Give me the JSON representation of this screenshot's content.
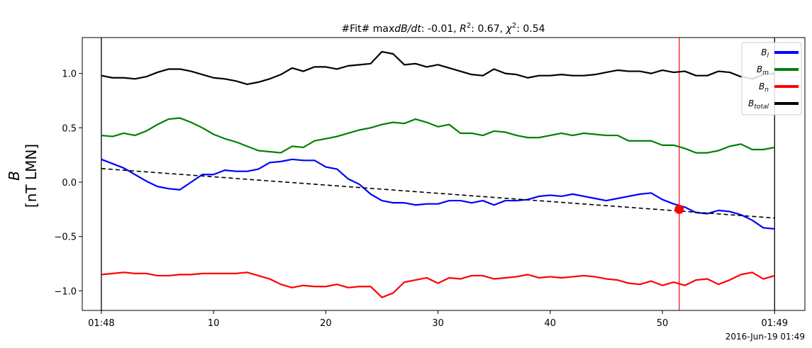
{
  "chart_data": {
    "type": "line",
    "title": "#Fit# maxdB/dt: -0.01, R²: 0.67, χ²: 0.54",
    "title_parts": {
      "prefix": "#Fit# max",
      "dbdt": "dB/dt",
      "after_dbdt": ": -0.01, ",
      "r_symbol": "R",
      "r_sup": "2",
      "after_r": ": 0.67, ",
      "chi_symbol": "χ",
      "chi_sup": "2",
      "after_chi": ": 0.54"
    },
    "ylabel_main": "B",
    "ylabel_unit": "[nT LMN]",
    "timestamp": "2016-Jun-19 01:49",
    "xlim": [
      -1.7,
      62.7
    ],
    "ylim": [
      -1.18,
      1.33
    ],
    "x_ticks": [
      {
        "x": 0,
        "label": "01:48"
      },
      {
        "x": 10,
        "label": "10"
      },
      {
        "x": 20,
        "label": "20"
      },
      {
        "x": 30,
        "label": "30"
      },
      {
        "x": 40,
        "label": "40"
      },
      {
        "x": 50,
        "label": "50"
      },
      {
        "x": 60,
        "label": "01:49"
      }
    ],
    "y_ticks": [
      {
        "y": 1.0,
        "label": "1.0"
      },
      {
        "y": 0.5,
        "label": "0.5"
      },
      {
        "y": 0.0,
        "label": "0.0"
      },
      {
        "y": -0.5,
        "label": "−0.5"
      },
      {
        "y": -1.0,
        "label": "−1.0"
      }
    ],
    "boundary_lines_x": [
      0,
      60
    ],
    "marker_line_x": 51.5,
    "fit_line": {
      "x": [
        0,
        60
      ],
      "y": [
        0.125,
        -0.33
      ]
    },
    "fit_point": {
      "x": 51.5,
      "y": -0.25
    },
    "legend_position": "top-right",
    "series": [
      {
        "name": "B_l",
        "label_main": "B",
        "label_sub": "l",
        "color": "#0000ff",
        "values": [
          0.21,
          0.17,
          0.13,
          0.07,
          0.01,
          -0.04,
          -0.06,
          -0.07,
          0.0,
          0.07,
          0.07,
          0.11,
          0.1,
          0.1,
          0.12,
          0.18,
          0.19,
          0.21,
          0.2,
          0.2,
          0.14,
          0.12,
          0.03,
          -0.02,
          -0.11,
          -0.17,
          -0.19,
          -0.19,
          -0.21,
          -0.2,
          -0.2,
          -0.17,
          -0.17,
          -0.19,
          -0.17,
          -0.21,
          -0.17,
          -0.17,
          -0.16,
          -0.13,
          -0.12,
          -0.13,
          -0.11,
          -0.13,
          -0.15,
          -0.17,
          -0.15,
          -0.13,
          -0.11,
          -0.1,
          -0.16,
          -0.2,
          -0.23,
          -0.28,
          -0.29,
          -0.26,
          -0.27,
          -0.3,
          -0.35,
          -0.42,
          -0.43
        ]
      },
      {
        "name": "B_m",
        "label_main": "B",
        "label_sub": "m",
        "color": "#008000",
        "values": [
          0.43,
          0.42,
          0.45,
          0.43,
          0.47,
          0.53,
          0.58,
          0.59,
          0.55,
          0.5,
          0.44,
          0.4,
          0.37,
          0.33,
          0.29,
          0.28,
          0.27,
          0.33,
          0.32,
          0.38,
          0.4,
          0.42,
          0.45,
          0.48,
          0.5,
          0.53,
          0.55,
          0.54,
          0.58,
          0.55,
          0.51,
          0.53,
          0.45,
          0.45,
          0.43,
          0.47,
          0.46,
          0.43,
          0.41,
          0.41,
          0.43,
          0.45,
          0.43,
          0.45,
          0.44,
          0.43,
          0.43,
          0.38,
          0.38,
          0.38,
          0.34,
          0.34,
          0.31,
          0.27,
          0.27,
          0.29,
          0.33,
          0.35,
          0.3,
          0.3,
          0.32
        ]
      },
      {
        "name": "B_n",
        "label_main": "B",
        "label_sub": "n",
        "color": "#ff0000",
        "values": [
          -0.85,
          -0.84,
          -0.83,
          -0.84,
          -0.84,
          -0.86,
          -0.86,
          -0.85,
          -0.85,
          -0.84,
          -0.84,
          -0.84,
          -0.84,
          -0.83,
          -0.86,
          -0.89,
          -0.94,
          -0.97,
          -0.95,
          -0.96,
          -0.96,
          -0.94,
          -0.97,
          -0.96,
          -0.96,
          -1.06,
          -1.02,
          -0.92,
          -0.9,
          -0.88,
          -0.93,
          -0.88,
          -0.89,
          -0.86,
          -0.86,
          -0.89,
          -0.88,
          -0.87,
          -0.85,
          -0.88,
          -0.87,
          -0.88,
          -0.87,
          -0.86,
          -0.87,
          -0.89,
          -0.9,
          -0.93,
          -0.94,
          -0.91,
          -0.95,
          -0.92,
          -0.95,
          -0.9,
          -0.89,
          -0.94,
          -0.9,
          -0.85,
          -0.83,
          -0.89,
          -0.86
        ]
      },
      {
        "name": "B_total",
        "label_main": "B",
        "label_sub": "total",
        "color": "#000000",
        "values": [
          0.98,
          0.96,
          0.96,
          0.95,
          0.97,
          1.01,
          1.04,
          1.04,
          1.02,
          0.99,
          0.96,
          0.95,
          0.93,
          0.9,
          0.92,
          0.95,
          0.99,
          1.05,
          1.02,
          1.06,
          1.06,
          1.04,
          1.07,
          1.08,
          1.09,
          1.2,
          1.18,
          1.08,
          1.09,
          1.06,
          1.08,
          1.05,
          1.02,
          0.99,
          0.98,
          1.04,
          1.0,
          0.99,
          0.96,
          0.98,
          0.98,
          0.99,
          0.98,
          0.98,
          0.99,
          1.01,
          1.03,
          1.02,
          1.02,
          1.0,
          1.03,
          1.01,
          1.02,
          0.98,
          0.98,
          1.02,
          1.01,
          0.97,
          0.95,
          0.99,
          1.0
        ]
      }
    ],
    "colors": {
      "fit_line": "#000000",
      "marker_line": "#ff0000",
      "fit_point": "#ff0000",
      "boundary_lines": "#000000"
    }
  }
}
